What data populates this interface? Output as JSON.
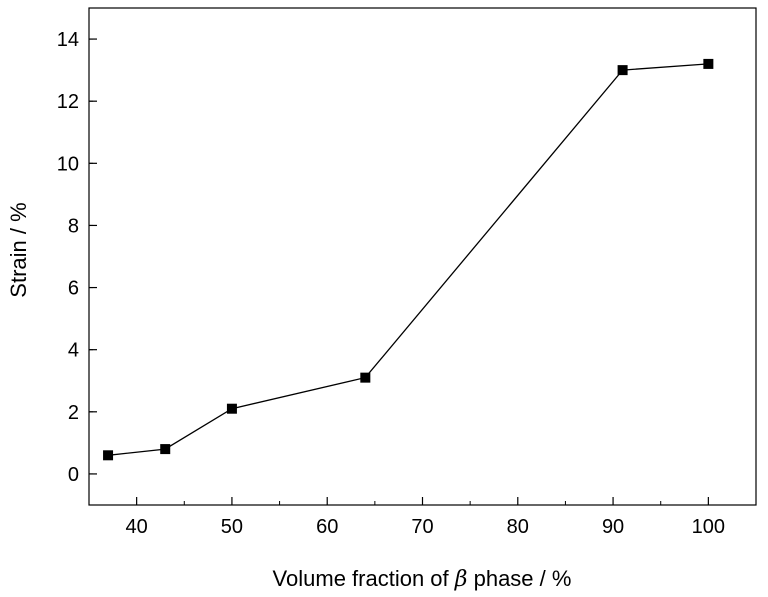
{
  "chart_data": {
    "type": "line",
    "xlabel_before": "Volume fraction of ",
    "xlabel_symbol": "β",
    "xlabel_after": " phase / %",
    "ylabel": "Strain / %",
    "xlim": [
      35,
      105
    ],
    "ylim": [
      -1,
      15
    ],
    "x_ticks": [
      40,
      50,
      60,
      70,
      80,
      90,
      100
    ],
    "y_ticks": [
      0,
      2,
      4,
      6,
      8,
      10,
      12,
      14
    ],
    "grid": false,
    "series": [
      {
        "marker": "square",
        "color": "#000000",
        "x": [
          37,
          43,
          50,
          64,
          91,
          100
        ],
        "y": [
          0.6,
          0.8,
          2.1,
          3.1,
          13.0,
          13.2
        ]
      }
    ]
  }
}
